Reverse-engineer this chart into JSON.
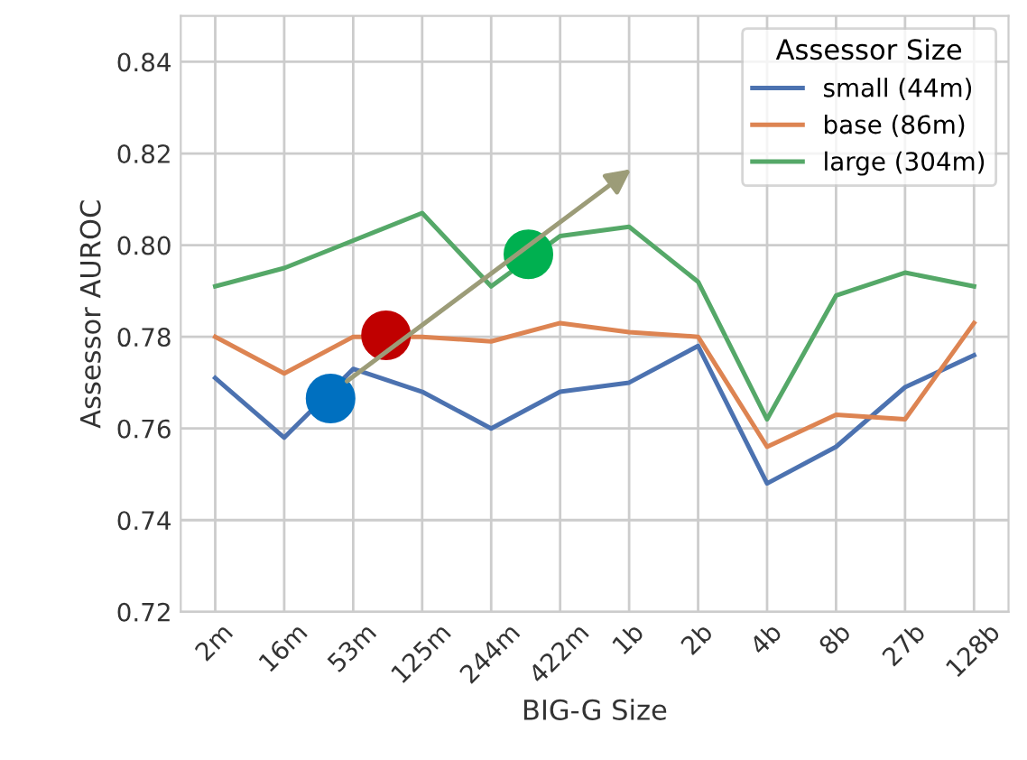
{
  "chart_data": {
    "type": "line",
    "xlabel": "BIG-G Size",
    "ylabel": "Assessor AUROC",
    "legend_title": "Assessor Size",
    "categories": [
      "2m",
      "16m",
      "53m",
      "125m",
      "244m",
      "422m",
      "1b",
      "2b",
      "4b",
      "8b",
      "27b",
      "128b"
    ],
    "series": [
      {
        "name": "small (44m)",
        "color": "#4c72b0",
        "values": [
          0.771,
          0.758,
          0.773,
          0.768,
          0.76,
          0.768,
          0.77,
          0.778,
          0.748,
          0.756,
          0.769,
          0.776
        ]
      },
      {
        "name": "base (86m)",
        "color": "#dd8452",
        "values": [
          0.78,
          0.772,
          0.78,
          0.78,
          0.779,
          0.783,
          0.781,
          0.78,
          0.756,
          0.763,
          0.762,
          0.783
        ]
      },
      {
        "name": "large (304m)",
        "color": "#55a868",
        "values": [
          0.791,
          0.795,
          0.801,
          0.807,
          0.791,
          0.802,
          0.804,
          0.792,
          0.762,
          0.789,
          0.794,
          0.791
        ]
      }
    ],
    "ylim": [
      0.72,
      0.85
    ],
    "yticks": [
      0.72,
      0.74,
      0.76,
      0.78,
      {
        "value": 0.8,
        "label": "0.80"
      },
      0.82,
      0.84
    ],
    "grid": true,
    "legend": "top right",
    "marker": "none",
    "line_style": "solid"
  }
}
